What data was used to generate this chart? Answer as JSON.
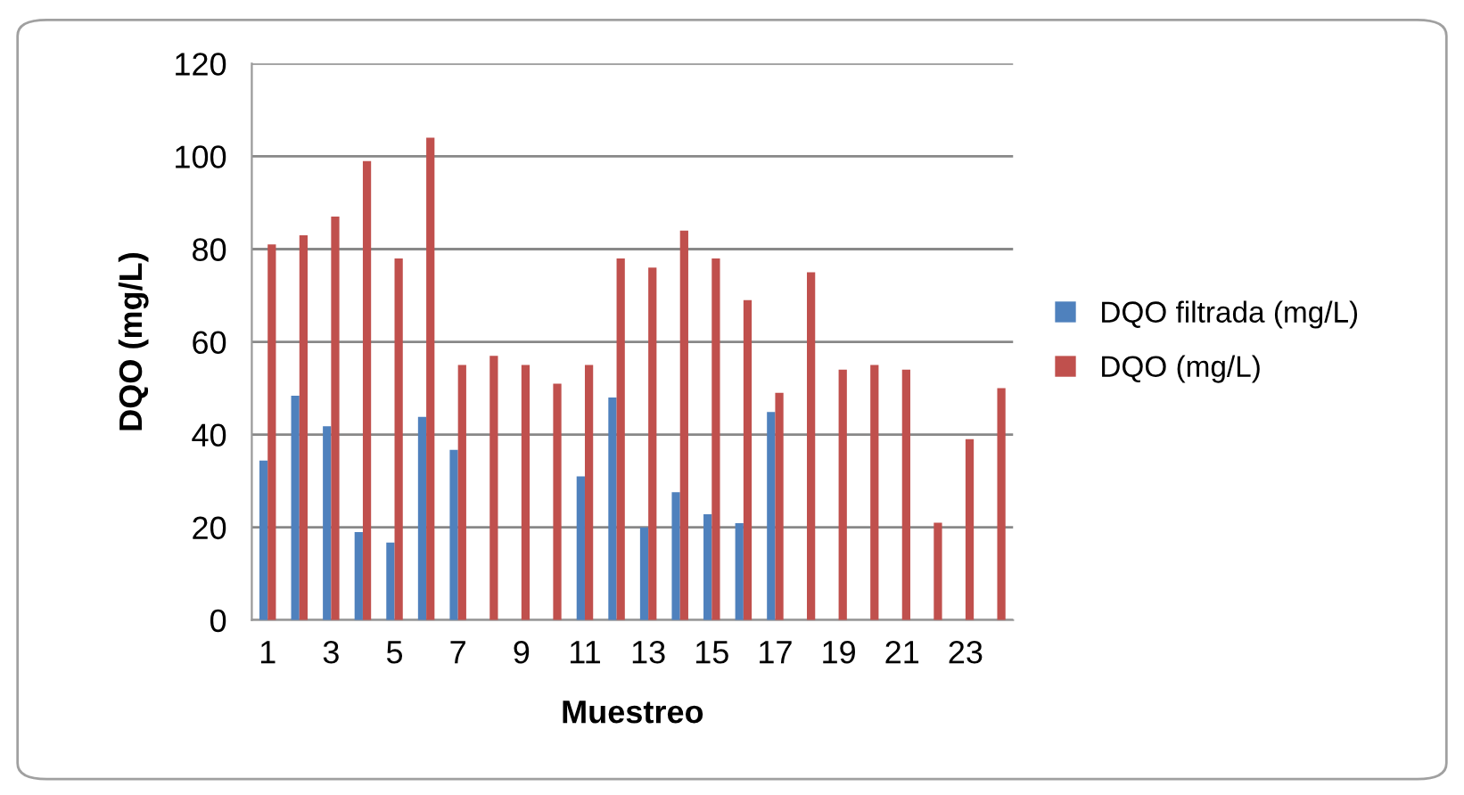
{
  "chart_data": {
    "type": "bar",
    "xlabel": "Muestreo",
    "ylabel": "DQO (mg/L)",
    "categories": [
      "1",
      null,
      "3",
      null,
      "5",
      null,
      "7",
      null,
      "9",
      null,
      "11",
      null,
      "13",
      null,
      "15",
      null,
      "17",
      null,
      "19",
      null,
      "21",
      null,
      "23",
      null
    ],
    "series": [
      {
        "name": "DQO filtrada (mg/L)",
        "color": "#4f81bd",
        "values": [
          34.4,
          48.4,
          41.8,
          19,
          16.7,
          43.8,
          36.7,
          null,
          null,
          null,
          31,
          48,
          20,
          27.6,
          22.8,
          20.9,
          44.9,
          null,
          null,
          null,
          null,
          null,
          null,
          null
        ]
      },
      {
        "name": "DQO (mg/L)",
        "color": "#c0504d",
        "values": [
          81,
          83,
          87,
          99,
          78,
          104,
          55,
          57,
          55,
          51,
          55,
          78,
          76,
          84,
          78,
          69,
          49,
          75,
          54,
          55,
          54,
          21,
          39,
          50
        ]
      }
    ],
    "ylim": [
      0,
      120
    ],
    "yticks": [
      0,
      20,
      40,
      60,
      80,
      100,
      120
    ],
    "grid": "y",
    "legend": "right"
  }
}
